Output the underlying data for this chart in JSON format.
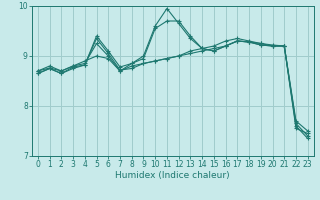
{
  "xlabel": "Humidex (Indice chaleur)",
  "xlim": [
    -0.5,
    23.5
  ],
  "ylim": [
    7,
    10
  ],
  "yticks": [
    7,
    8,
    9,
    10
  ],
  "xticks": [
    0,
    1,
    2,
    3,
    4,
    5,
    6,
    7,
    8,
    9,
    10,
    11,
    12,
    13,
    14,
    15,
    16,
    17,
    18,
    19,
    20,
    21,
    22,
    23
  ],
  "bg_color": "#c8eaea",
  "grid_color": "#a0cccc",
  "line_color": "#1e7870",
  "lines": [
    {
      "x": [
        0,
        1,
        2,
        3,
        4,
        5,
        6,
        7,
        8,
        9,
        10,
        11,
        12,
        13,
        14,
        15,
        16,
        17,
        18,
        19,
        20,
        21,
        22,
        23
      ],
      "y": [
        8.65,
        8.75,
        8.65,
        8.78,
        8.82,
        9.35,
        9.05,
        8.72,
        8.75,
        8.85,
        8.9,
        8.95,
        9.0,
        9.05,
        9.1,
        9.15,
        9.2,
        9.3,
        9.28,
        9.22,
        9.2,
        9.2,
        7.55,
        7.45
      ]
    },
    {
      "x": [
        0,
        1,
        2,
        3,
        4,
        5,
        6,
        7,
        8,
        9,
        10,
        11,
        12,
        13,
        14,
        15,
        16,
        17,
        18,
        19,
        20,
        21,
        22,
        23
      ],
      "y": [
        8.65,
        8.75,
        8.65,
        8.75,
        8.82,
        9.4,
        9.1,
        8.78,
        8.85,
        9.0,
        9.6,
        9.95,
        9.65,
        9.35,
        9.15,
        9.1,
        9.2,
        9.3,
        9.28,
        9.22,
        9.2,
        9.2,
        7.6,
        7.35
      ]
    },
    {
      "x": [
        0,
        1,
        2,
        3,
        4,
        5,
        6,
        7,
        8,
        9,
        10,
        11,
        12,
        13,
        14,
        15,
        16,
        17,
        18,
        19,
        20,
        21,
        22,
        23
      ],
      "y": [
        8.7,
        8.76,
        8.7,
        8.8,
        8.85,
        9.25,
        9.0,
        8.7,
        8.85,
        8.95,
        9.55,
        9.7,
        9.7,
        9.4,
        9.15,
        9.1,
        9.2,
        9.3,
        9.28,
        9.25,
        9.2,
        9.2,
        7.7,
        7.5
      ]
    },
    {
      "x": [
        0,
        1,
        2,
        3,
        4,
        5,
        6,
        7,
        8,
        9,
        10,
        11,
        12,
        13,
        14,
        15,
        16,
        17,
        18,
        19,
        20,
        21,
        22,
        23
      ],
      "y": [
        8.7,
        8.8,
        8.7,
        8.8,
        8.9,
        9.0,
        8.95,
        8.7,
        8.8,
        8.85,
        8.9,
        8.95,
        9.0,
        9.1,
        9.15,
        9.2,
        9.3,
        9.35,
        9.3,
        9.25,
        9.22,
        9.2,
        7.65,
        7.4
      ]
    }
  ]
}
